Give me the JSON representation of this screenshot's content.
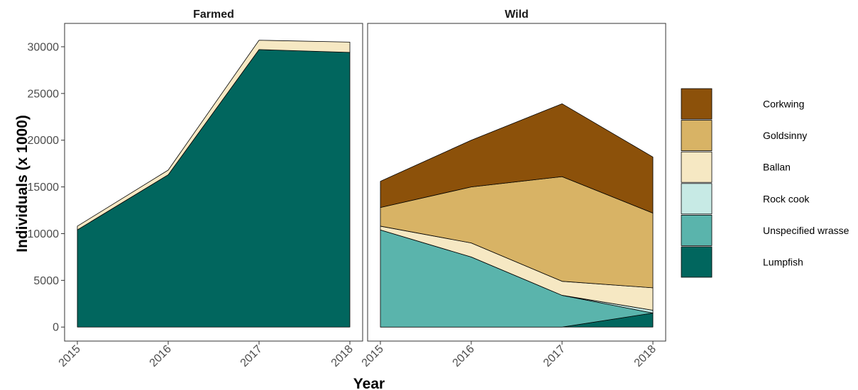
{
  "chart_data": {
    "type": "area",
    "xlabel": "Year",
    "ylabel": "Individuals (x 1000)",
    "x": [
      2015,
      2016,
      2017,
      2018
    ],
    "x_tick_labels": [
      "2015",
      "2016",
      "2017",
      "2018"
    ],
    "ylim": [
      -1500,
      32500
    ],
    "y_ticks": [
      0,
      5000,
      10000,
      15000,
      20000,
      25000,
      30000
    ],
    "stacked": true,
    "grid": false,
    "legend_position": "right",
    "panels": [
      {
        "title": "Farmed",
        "series": [
          {
            "name": "Lumpfish",
            "values": [
              10400,
              16300,
              29700,
              29400
            ]
          },
          {
            "name": "Unspecified wrasse",
            "values": [
              0,
              0,
              0,
              0
            ]
          },
          {
            "name": "Rock cook",
            "values": [
              0,
              0,
              0,
              0
            ]
          },
          {
            "name": "Ballan",
            "values": [
              400,
              500,
              1000,
              1100
            ]
          },
          {
            "name": "Goldsinny",
            "values": [
              0,
              0,
              0,
              0
            ]
          },
          {
            "name": "Corkwing",
            "values": [
              0,
              0,
              0,
              0
            ]
          }
        ]
      },
      {
        "title": "Wild",
        "series": [
          {
            "name": "Lumpfish",
            "values": [
              0,
              0,
              0,
              1500
            ]
          },
          {
            "name": "Unspecified wrasse",
            "values": [
              10400,
              7500,
              3400,
              0
            ]
          },
          {
            "name": "Rock cook",
            "values": [
              0,
              0,
              0,
              300
            ]
          },
          {
            "name": "Ballan",
            "values": [
              400,
              1500,
              1500,
              2400
            ]
          },
          {
            "name": "Goldsinny",
            "values": [
              2000,
              6000,
              11200,
              8000
            ]
          },
          {
            "name": "Corkwing",
            "values": [
              2800,
              5000,
              7800,
              6000
            ]
          }
        ]
      }
    ],
    "legend": [
      {
        "name": "Corkwing",
        "color": "#8c510a"
      },
      {
        "name": "Goldsinny",
        "color": "#d8b365"
      },
      {
        "name": "Ballan",
        "color": "#f6e8c3"
      },
      {
        "name": "Rock cook",
        "color": "#c7eae5"
      },
      {
        "name": "Unspecified wrasse",
        "color": "#5ab4ac"
      },
      {
        "name": "Lumpfish",
        "color": "#01665e"
      }
    ],
    "colors": {
      "Lumpfish": "#01665e",
      "Unspecified wrasse": "#5ab4ac",
      "Rock cook": "#c7eae5",
      "Ballan": "#f6e8c3",
      "Goldsinny": "#d8b365",
      "Corkwing": "#8c510a"
    }
  }
}
